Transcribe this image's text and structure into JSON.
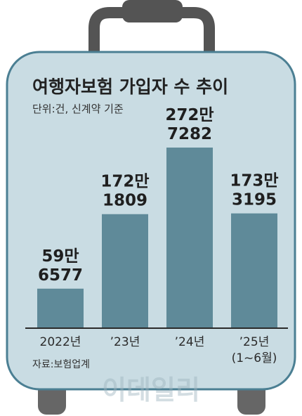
{
  "chart_data": {
    "type": "bar",
    "title": "여행자보험 가입자 수 추이",
    "subtitle": "단위:건, 신계약 기준",
    "categories": [
      "2022년",
      "’23년",
      "’24년",
      "’25년"
    ],
    "category_notes": [
      "",
      "",
      "",
      "(1~6월)"
    ],
    "values": [
      596577,
      1721809,
      2727282,
      1733195
    ],
    "value_labels": [
      [
        "59만",
        "6577"
      ],
      [
        "172만",
        "1809"
      ],
      [
        "272만",
        "7282"
      ],
      [
        "173만",
        "3195"
      ]
    ],
    "ylim": [
      0,
      2900000
    ],
    "grid": false,
    "legend": "none",
    "source": "자료:보험업계",
    "watermark": "이데일리",
    "colors": {
      "bar": "#5f8a99",
      "suitcase_fill": "#c9dce3",
      "suitcase_stroke": "#4b7f93",
      "handle": "#545454",
      "wheels": "#666666",
      "divider": "#2a2a2a"
    }
  }
}
